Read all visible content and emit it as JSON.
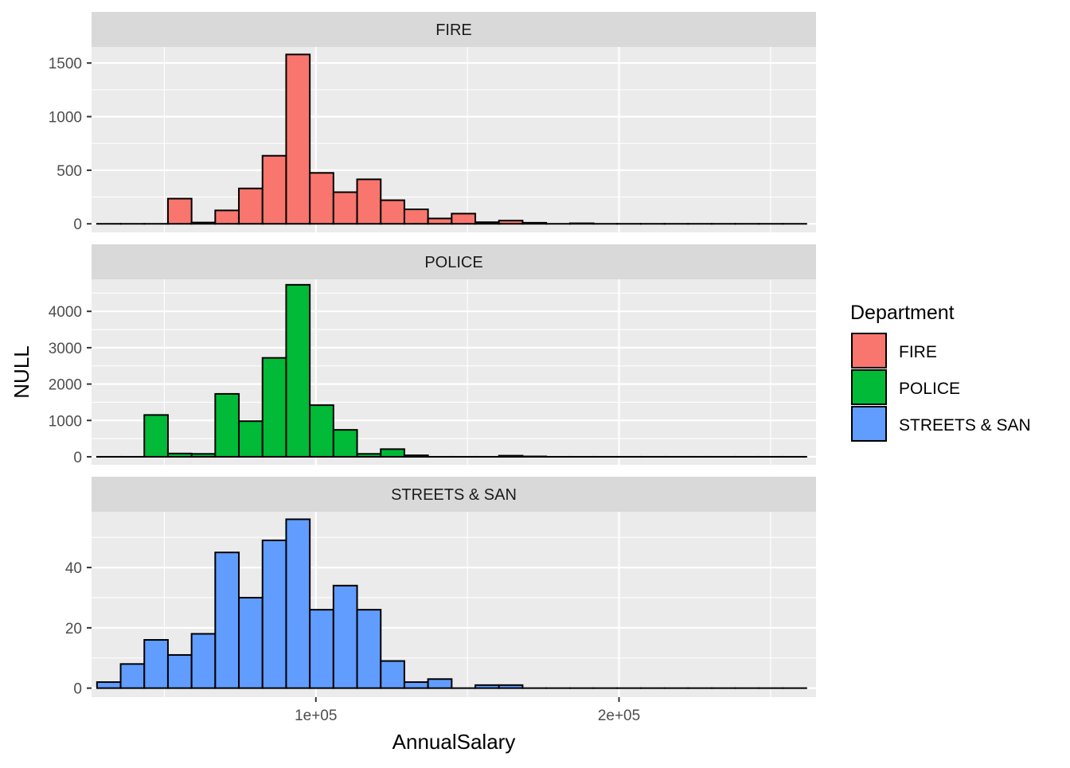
{
  "chart_data": {
    "type": "bar",
    "subtype": "histogram",
    "facet_layout": "vertical, free y scales, shared x axis",
    "xlabel": "AnnualSalary",
    "ylabel": "NULL",
    "x_ticks": [
      {
        "value": 100000,
        "label": "1e+05"
      },
      {
        "value": 200000,
        "label": "2e+05"
      }
    ],
    "x_range": [
      26000,
      265000
    ],
    "bin_width": 7800,
    "bin_starts": [
      27800,
      35600,
      43400,
      51200,
      59000,
      66800,
      74600,
      82400,
      90200,
      98000,
      105800,
      113600,
      121400,
      129200,
      137000,
      144800,
      152600,
      160400,
      168200,
      176000,
      183800,
      191600,
      199400,
      207200,
      215000,
      222800,
      230600,
      238400,
      246200,
      254000
    ],
    "legend": {
      "title": "Department",
      "position": "right",
      "entries": [
        {
          "label": "FIRE",
          "color": "#F8766D"
        },
        {
          "label": "POLICE",
          "color": "#00BA38"
        },
        {
          "label": "STREETS & SAN",
          "color": "#619CFF"
        }
      ]
    },
    "colors": {
      "panel_background": "#EBEBEB",
      "strip_background": "#D9D9D9",
      "grid": "#FFFFFF",
      "bar_outline": "#000000",
      "axis_text": "#4D4D4D",
      "strip_text": "#1A1A1A"
    },
    "facets": [
      {
        "label": "FIRE",
        "color": "#F8766D",
        "ylim": [
          -80,
          1650
        ],
        "y_ticks": [
          0,
          500,
          1000,
          1500
        ],
        "counts": [
          0,
          0,
          0,
          235,
          12,
          125,
          330,
          635,
          1580,
          475,
          295,
          415,
          220,
          135,
          50,
          95,
          15,
          30,
          10,
          0,
          5,
          0,
          0,
          0,
          0,
          0,
          0,
          0,
          0,
          0
        ]
      },
      {
        "label": "POLICE",
        "color": "#00BA38",
        "ylim": [
          -220,
          4880
        ],
        "y_ticks": [
          0,
          1000,
          2000,
          3000,
          4000
        ],
        "counts": [
          0,
          0,
          1150,
          90,
          80,
          1730,
          980,
          2720,
          4730,
          1420,
          740,
          80,
          210,
          40,
          0,
          0,
          0,
          30,
          10,
          0,
          0,
          0,
          0,
          0,
          0,
          0,
          0,
          0,
          0,
          0
        ]
      },
      {
        "label": "STREETS & SAN",
        "color": "#619CFF",
        "ylim": [
          -3,
          58.5
        ],
        "y_ticks": [
          0,
          20,
          40
        ],
        "counts": [
          2,
          8,
          16,
          11,
          18,
          45,
          30,
          49,
          56,
          26,
          34,
          26,
          9,
          2,
          3,
          0,
          1,
          1,
          0,
          0,
          0,
          0,
          0,
          0,
          0,
          0,
          0,
          0,
          0,
          0
        ]
      }
    ]
  }
}
